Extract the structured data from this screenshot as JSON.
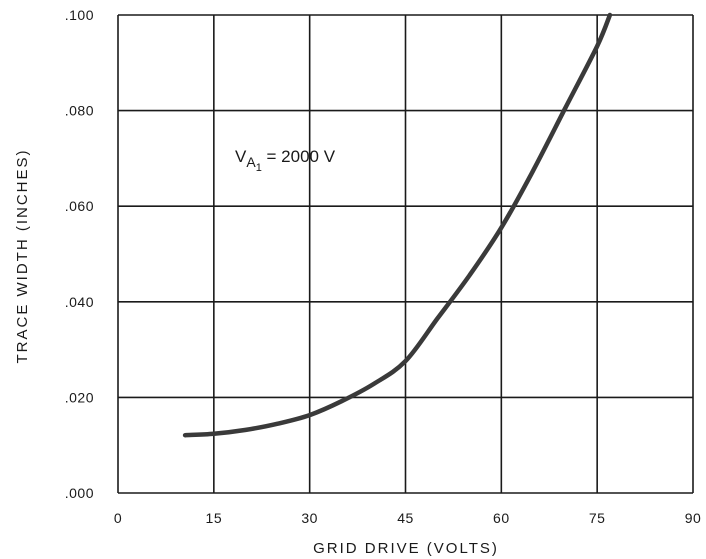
{
  "chart_data": {
    "type": "line",
    "xlabel": "GRID DRIVE (VOLTS)",
    "ylabel": "TRACE WIDTH (INCHES)",
    "xlim": [
      0,
      90
    ],
    "ylim": [
      0,
      0.1
    ],
    "x_ticks": [
      0,
      15,
      30,
      45,
      60,
      75,
      90
    ],
    "x_tick_labels": [
      "0",
      "15",
      "30",
      "45",
      "60",
      "75",
      "90"
    ],
    "y_ticks": [
      0,
      0.02,
      0.04,
      0.06,
      0.08,
      0.1
    ],
    "y_tick_labels": [
      ".000",
      ".020",
      ".040",
      ".060",
      ".080",
      ".100"
    ],
    "grid": true,
    "annotation": {
      "prefix": "V",
      "subscript_main": "A",
      "subscript_index": "1",
      "rest": " = 2000 V"
    },
    "series": [
      {
        "x": [
          10.5,
          15,
          20,
          25,
          30,
          35,
          40,
          45,
          50,
          55,
          60,
          65,
          70,
          75,
          77
        ],
        "y": [
          0.0121,
          0.0124,
          0.0132,
          0.0145,
          0.0163,
          0.0192,
          0.0228,
          0.0276,
          0.0365,
          0.0455,
          0.0555,
          0.0675,
          0.0805,
          0.0935,
          0.1
        ],
        "color": "#3a3a3a"
      }
    ]
  }
}
